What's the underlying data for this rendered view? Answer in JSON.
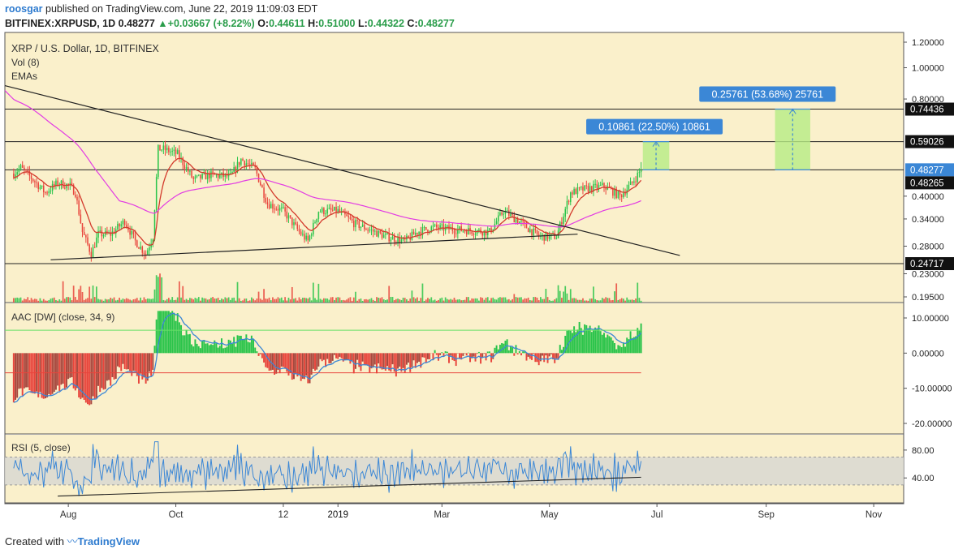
{
  "header": {
    "user": "roosgar",
    "published": "published on TradingView.com, June 22, 2019 11:09:03 EDT",
    "symbol": "BITFINEX:XRPUSD, 1D",
    "last": "0.48277",
    "change": "+0.03667 (+8.22%)",
    "o_label": "O:",
    "o": "0.44611",
    "h_label": "H:",
    "h": "0.51000",
    "l_label": "L:",
    "l": "0.44322",
    "c_label": "C:",
    "c": "0.48277"
  },
  "footer": {
    "created": "Created with",
    "brand": "TradingView"
  },
  "colors": {
    "background": "#faf0cb",
    "up": "#2ac44a",
    "down": "#e8453c",
    "ema_slow": "#e23be3",
    "ema_fast": "#d33a2c",
    "blue": "#3b87d6",
    "green_line": "#66e066",
    "red_line": "#e8453c",
    "label_bg": "#3b87d6"
  },
  "chart_data": {
    "type": "candlestick",
    "title": "XRP / U.S. Dollar, 1D, BITFINEX",
    "indicators": [
      "Vol (8)",
      "EMAs"
    ],
    "x_ticks": [
      "Aug",
      "Oct",
      "12",
      "2019",
      "Mar",
      "May",
      "Jul",
      "Sep",
      "Nov"
    ],
    "y_ticks": [
      "1.20000",
      "1.00000",
      "0.80000",
      "0.59026",
      "0.48277",
      "0.40000",
      "0.34000",
      "0.28000",
      "0.23000",
      "0.19500"
    ],
    "horizontal_levels": [
      "0.74436",
      "0.59026",
      "0.48277",
      "0.48265",
      "0.24717"
    ],
    "measure_labels": [
      "0.10861 (22.50%) 10861",
      "0.25761 (53.68%) 25761"
    ],
    "price_path": [
      [
        "2018-07-01",
        0.47
      ],
      [
        "2018-07-05",
        0.49
      ],
      [
        "2018-07-12",
        0.45
      ],
      [
        "2018-07-19",
        0.41
      ],
      [
        "2018-07-26",
        0.44
      ],
      [
        "2018-08-02",
        0.43
      ],
      [
        "2018-08-05",
        0.41
      ],
      [
        "2018-08-09",
        0.31
      ],
      [
        "2018-08-14",
        0.265
      ],
      [
        "2018-08-18",
        0.305
      ],
      [
        "2018-08-25",
        0.305
      ],
      [
        "2018-09-02",
        0.335
      ],
      [
        "2018-09-08",
        0.29
      ],
      [
        "2018-09-14",
        0.265
      ],
      [
        "2018-09-18",
        0.3
      ],
      [
        "2018-09-21",
        0.56
      ],
      [
        "2018-09-24",
        0.56
      ],
      [
        "2018-10-02",
        0.54
      ],
      [
        "2018-10-11",
        0.45
      ],
      [
        "2018-10-20",
        0.465
      ],
      [
        "2018-11-01",
        0.46
      ],
      [
        "2018-11-07",
        0.52
      ],
      [
        "2018-11-15",
        0.485
      ],
      [
        "2018-11-22",
        0.38
      ],
      [
        "2018-12-01",
        0.36
      ],
      [
        "2018-12-10",
        0.31
      ],
      [
        "2018-12-15",
        0.29
      ],
      [
        "2018-12-21",
        0.36
      ],
      [
        "2019-01-01",
        0.36
      ],
      [
        "2019-01-10",
        0.33
      ],
      [
        "2019-01-28",
        0.3
      ],
      [
        "2019-02-08",
        0.29
      ],
      [
        "2019-02-15",
        0.31
      ],
      [
        "2019-02-24",
        0.32
      ],
      [
        "2019-03-10",
        0.315
      ],
      [
        "2019-03-28",
        0.31
      ],
      [
        "2019-04-05",
        0.36
      ],
      [
        "2019-04-15",
        0.33
      ],
      [
        "2019-04-25",
        0.3
      ],
      [
        "2019-05-05",
        0.3
      ],
      [
        "2019-05-13",
        0.41
      ],
      [
        "2019-05-20",
        0.42
      ],
      [
        "2019-06-01",
        0.43
      ],
      [
        "2019-06-10",
        0.4
      ],
      [
        "2019-06-17",
        0.44
      ],
      [
        "2019-06-22",
        0.483
      ]
    ],
    "aac_ticks": [
      "10.00000",
      "0.00000",
      "-10.00000",
      "-20.00000"
    ],
    "aac_label": "AAC [DW] (close, 34, 9)",
    "rsi_label": "RSI (5, close)",
    "rsi_ticks": [
      "80.00",
      "40.00"
    ],
    "legend": "top-left",
    "grid": false
  }
}
